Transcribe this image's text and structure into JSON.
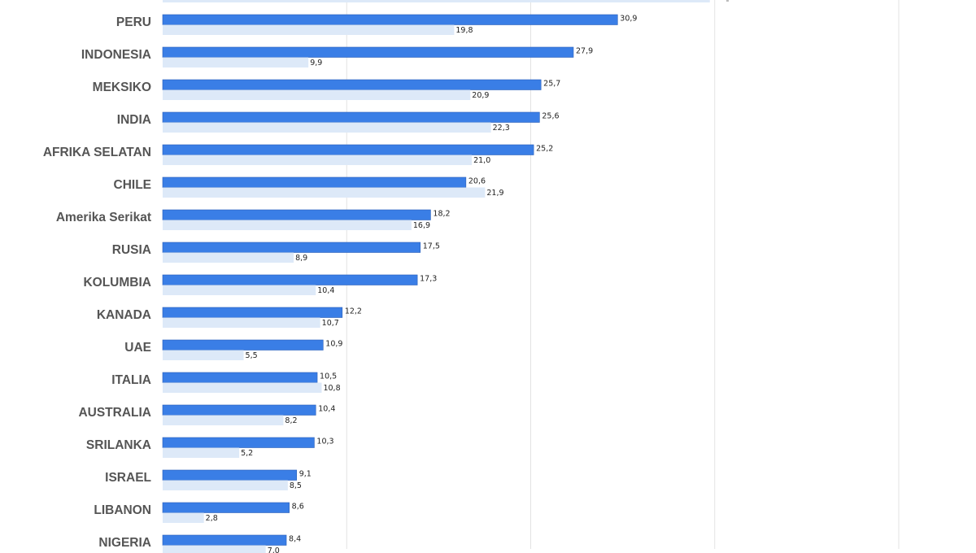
{
  "chart_data": {
    "type": "bar",
    "orientation": "horizontal",
    "categories": [
      "PERU",
      "INDONESIA",
      "MEKSIKO",
      "INDIA",
      "AFRIKA SELATAN",
      "CHILE",
      "Amerika Serikat",
      "RUSIA",
      "KOLUMBIA",
      "KANADA",
      "UAE",
      "ITALIA",
      "AUSTRALIA",
      "SRILANKA",
      "ISRAEL",
      "LIBANON",
      "NIGERIA"
    ],
    "series": [
      {
        "color": "#3a7ee6",
        "values": [
          30.9,
          27.9,
          25.7,
          25.6,
          25.2,
          20.6,
          18.2,
          17.5,
          17.3,
          12.2,
          10.9,
          10.5,
          10.4,
          10.3,
          9.1,
          8.6,
          8.4
        ],
        "labels": [
          "30,9",
          "27,9",
          "25,7",
          "25,6",
          "25,2",
          "20,6",
          "18,2",
          "17,5",
          "17,3",
          "12,2",
          "10,9",
          "10,5",
          "10,4",
          "10,3",
          "9,1",
          "8,6",
          "8,4"
        ]
      },
      {
        "color": "#dde9f8",
        "values": [
          19.8,
          9.9,
          20.9,
          22.3,
          21.0,
          21.9,
          16.9,
          8.9,
          10.4,
          10.7,
          5.5,
          10.8,
          8.2,
          5.2,
          8.5,
          2.8,
          7.0
        ],
        "labels": [
          "19,8",
          "9,9",
          "20,9",
          "22,3",
          "21,0",
          "21,9",
          "16,9",
          "8,9",
          "10,4",
          "10,7",
          "5,5",
          "10,8",
          "8,2",
          "5,2",
          "8,5",
          "2,8",
          "7,0"
        ]
      }
    ],
    "xlim": [
      0,
      50
    ],
    "grid": true,
    "gridlines_at": [
      0,
      12.5,
      25,
      37.5,
      50
    ],
    "title": "",
    "xlabel": "",
    "ylabel": ""
  }
}
